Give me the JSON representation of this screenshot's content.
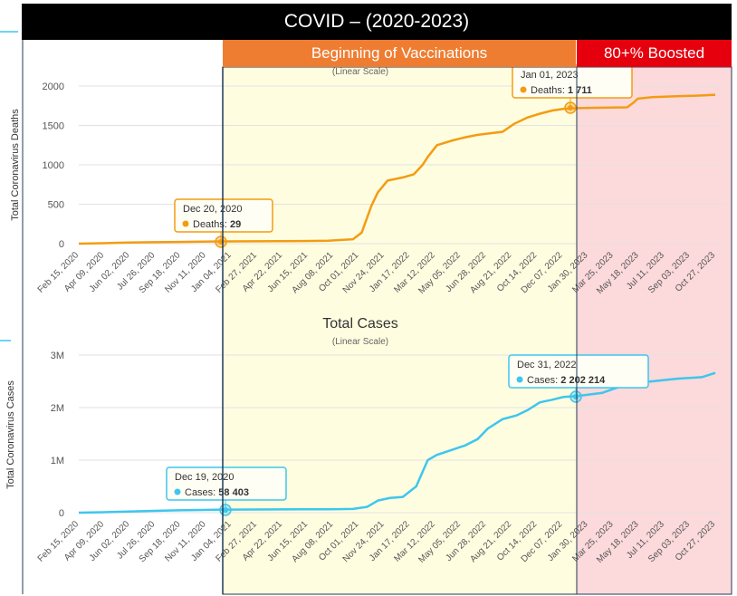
{
  "header": {
    "title": "COVID – (2020-2023)",
    "vaccination_label": "Beginning of Vaccinations",
    "boosted_label": "80+% Boosted"
  },
  "colors": {
    "deaths": "#f39c12",
    "cases": "#3ec6ee",
    "vaccination_region": "#fffde0",
    "boosted_region": "#fcd9db",
    "title_bar": "#000000",
    "vaccination_bar": "#ef7d31",
    "boosted_bar": "#e6000e"
  },
  "chart_data": [
    {
      "type": "line",
      "title": "",
      "subtitle": "(Linear Scale)",
      "ylabel": "Total Coronavirus Deaths",
      "xlabel": "",
      "yticks": [
        "0",
        "500",
        "1000",
        "1500",
        "2000"
      ],
      "ylim": [
        0,
        2000
      ],
      "x_tick_labels": [
        "Feb 15, 2020",
        "Apr 09, 2020",
        "Jun 02, 2020",
        "Jul 26, 2020",
        "Sep 18, 2020",
        "Nov 11, 2020",
        "Jan 04, 2021",
        "Feb 27, 2021",
        "Apr 22, 2021",
        "Jun 15, 2021",
        "Aug 08, 2021",
        "Oct 01, 2021",
        "Nov 24, 2021",
        "Jan 17, 2022",
        "Mar 12, 2022",
        "May 05, 2022",
        "Jun 28, 2022",
        "Aug 21, 2022",
        "Oct 14, 2022",
        "Dec 07, 2022",
        "Jan 30, 2023",
        "Mar 25, 2023",
        "May 18, 2023",
        "Jul 11, 2023",
        "Sep 03, 2023",
        "Oct 27, 2023"
      ],
      "series": [
        {
          "x": [
            "2020-02-15",
            "2020-04-09",
            "2020-06-02",
            "2020-07-26",
            "2020-09-18",
            "2020-11-11",
            "2020-12-20",
            "2021-02-27",
            "2021-04-22",
            "2021-06-15",
            "2021-08-08",
            "2021-10-01",
            "2021-10-20",
            "2021-11-10",
            "2021-11-24",
            "2021-12-15",
            "2022-01-17",
            "2022-02-10",
            "2022-03-01",
            "2022-03-12",
            "2022-04-01",
            "2022-05-05",
            "2022-06-01",
            "2022-06-28",
            "2022-08-21",
            "2022-09-15",
            "2022-10-14",
            "2022-11-10",
            "2022-12-07",
            "2023-01-01",
            "2023-01-30",
            "2023-03-25",
            "2023-05-18",
            "2023-06-01",
            "2023-06-10",
            "2023-07-11",
            "2023-09-03",
            "2023-10-27",
            "2023-11-25"
          ],
          "values": [
            0,
            6,
            14,
            18,
            22,
            26,
            29,
            30,
            31,
            33,
            38,
            55,
            140,
            480,
            650,
            800,
            840,
            880,
            1000,
            1100,
            1250,
            1310,
            1350,
            1380,
            1420,
            1520,
            1600,
            1650,
            1690,
            1711,
            1720,
            1725,
            1730,
            1790,
            1840,
            1860,
            1870,
            1880,
            1890
          ]
        }
      ],
      "annotations": [
        {
          "date": "Dec 20, 2020",
          "label": "Deaths",
          "value": "29"
        },
        {
          "date": "Jan 01, 2023",
          "label": "Deaths",
          "value": "1 711"
        }
      ]
    },
    {
      "type": "line",
      "title": "Total Cases",
      "subtitle": "(Linear Scale)",
      "ylabel": "Total Coronavirus Cases",
      "xlabel": "",
      "yticks": [
        "0",
        "1M",
        "2M",
        "3M"
      ],
      "ylim": [
        0,
        3000000
      ],
      "x_tick_labels": [
        "Feb 15, 2020",
        "Apr 09, 2020",
        "Jun 02, 2020",
        "Jul 26, 2020",
        "Sep 18, 2020",
        "Nov 11, 2020",
        "Jan 04, 2021",
        "Feb 27, 2021",
        "Apr 22, 2021",
        "Jun 15, 2021",
        "Aug 08, 2021",
        "Oct 01, 2021",
        "Nov 24, 2021",
        "Jan 17, 2022",
        "Mar 12, 2022",
        "May 05, 2022",
        "Jun 28, 2022",
        "Aug 21, 2022",
        "Oct 14, 2022",
        "Dec 07, 2022",
        "Jan 30, 2023",
        "Mar 25, 2023",
        "May 18, 2023",
        "Jul 11, 2023",
        "Sep 03, 2023",
        "Oct 27, 2023"
      ],
      "series": [
        {
          "x": [
            "2020-02-15",
            "2020-04-09",
            "2020-06-02",
            "2020-07-26",
            "2020-09-18",
            "2020-11-11",
            "2020-12-19",
            "2021-02-27",
            "2021-04-22",
            "2021-06-15",
            "2021-08-08",
            "2021-10-01",
            "2021-11-01",
            "2021-11-24",
            "2021-12-20",
            "2022-01-17",
            "2022-02-15",
            "2022-03-12",
            "2022-04-01",
            "2022-05-05",
            "2022-06-01",
            "2022-06-28",
            "2022-07-20",
            "2022-08-21",
            "2022-09-20",
            "2022-10-14",
            "2022-11-10",
            "2022-12-07",
            "2022-12-31",
            "2023-01-30",
            "2023-03-25",
            "2023-05-18",
            "2023-07-11",
            "2023-09-03",
            "2023-10-27",
            "2023-11-25"
          ],
          "values": [
            0,
            8000,
            20000,
            35000,
            45000,
            52000,
            58403,
            60000,
            62000,
            64000,
            66000,
            70000,
            110000,
            230000,
            280000,
            300000,
            500000,
            1000000,
            1100000,
            1200000,
            1280000,
            1400000,
            1600000,
            1780000,
            1850000,
            1950000,
            2100000,
            2150000,
            2202214,
            2220000,
            2280000,
            2450000,
            2500000,
            2550000,
            2580000,
            2660000
          ]
        }
      ],
      "annotations": [
        {
          "date": "Dec 19, 2020",
          "label": "Cases",
          "value": "58 403"
        },
        {
          "date": "Dec 31, 2022",
          "label": "Cases",
          "value": "2 202 214"
        }
      ]
    }
  ]
}
